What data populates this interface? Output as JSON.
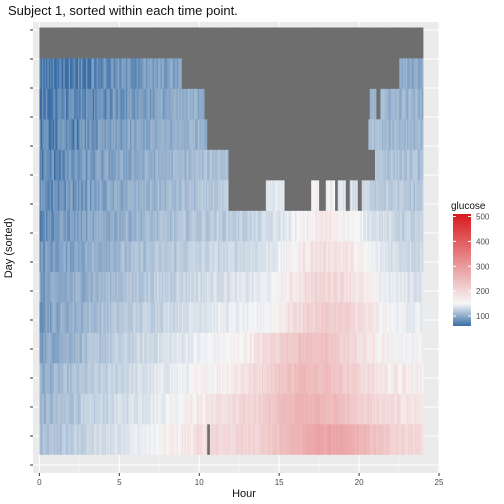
{
  "chart_data": {
    "type": "heatmap",
    "title": "Subject 1, sorted within each time point.",
    "xlabel": "Hour",
    "ylabel": "Day (sorted)",
    "xlim": [
      -0.4,
      25
    ],
    "x_ticks": [
      0,
      5,
      10,
      15,
      20,
      25
    ],
    "x_range": [
      0,
      24
    ],
    "rows": 14,
    "row_ticks": [
      1,
      2,
      3,
      4,
      5,
      6,
      7,
      8,
      9,
      10,
      11,
      12,
      13,
      14,
      15,
      16
    ],
    "grid": true,
    "panel_background": "#ebebeb",
    "missing_color": "#6e6e6e",
    "low_color": "#3a6ea5",
    "mid_color": "#f7f7f7",
    "high_color": "#d7191c",
    "legend": {
      "title": "glucose",
      "position": "right",
      "ticks": [
        100,
        200,
        300,
        400,
        500
      ],
      "range": [
        60,
        510
      ]
    },
    "row_profiles": [
      {
        "row": 1,
        "start": 90,
        "end": 175,
        "peak_hour": 18,
        "peak_value": 245,
        "missing": [
          [
            10.5,
            10.7
          ]
        ]
      },
      {
        "row": 2,
        "start": 85,
        "end": 165,
        "peak_hour": 17,
        "peak_value": 225,
        "missing": []
      },
      {
        "row": 3,
        "start": 80,
        "end": 155,
        "peak_hour": 17,
        "peak_value": 215,
        "missing": []
      },
      {
        "row": 4,
        "start": 75,
        "end": 145,
        "peak_hour": 17,
        "peak_value": 205,
        "missing": []
      },
      {
        "row": 5,
        "start": 72,
        "end": 135,
        "peak_hour": 18,
        "peak_value": 190,
        "missing": []
      },
      {
        "row": 6,
        "start": 70,
        "end": 125,
        "peak_hour": 18,
        "peak_value": 180,
        "missing": []
      },
      {
        "row": 7,
        "start": 68,
        "end": 115,
        "peak_hour": 18,
        "peak_value": 170,
        "missing": []
      },
      {
        "row": 8,
        "start": 65,
        "end": 105,
        "peak_hour": 18,
        "peak_value": 160,
        "missing": []
      },
      {
        "row": 9,
        "start": 62,
        "end": 100,
        "peak_hour": 17,
        "peak_value": 150,
        "missing": [
          [
            11.8,
            14.2
          ],
          [
            15.3,
            17.0
          ],
          [
            17.5,
            17.9
          ],
          [
            18.5,
            18.7
          ],
          [
            19.2,
            19.4
          ],
          [
            19.9,
            20.2
          ]
        ]
      },
      {
        "row": 10,
        "start": 60,
        "end": 95,
        "peak_hour": 17,
        "peak_value": 140,
        "missing": [
          [
            11.8,
            21.0
          ]
        ]
      },
      {
        "row": 11,
        "start": 58,
        "end": 90,
        "peak_hour": 17,
        "peak_value": 120,
        "missing": [
          [
            10.5,
            20.6
          ]
        ]
      },
      {
        "row": 12,
        "start": 55,
        "end": 85,
        "peak_hour": 17,
        "peak_value": 110,
        "missing": [
          [
            10.3,
            20.7
          ],
          [
            21.1,
            21.3
          ]
        ]
      },
      {
        "row": 13,
        "start": 55,
        "end": 80,
        "peak_hour": 17,
        "peak_value": 100,
        "missing": [
          [
            8.9,
            22.5
          ]
        ]
      },
      {
        "row": 14,
        "start": 0,
        "end": 0,
        "peak_hour": 12,
        "peak_value": 0,
        "missing": [
          [
            0,
            24
          ]
        ]
      }
    ]
  }
}
